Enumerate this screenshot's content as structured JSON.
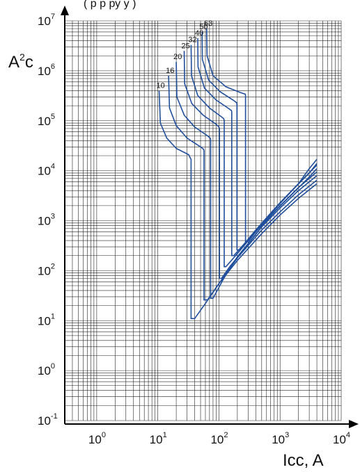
{
  "header_fragment": "(    р  р  ру  у )",
  "chart_data": {
    "type": "line",
    "xscale": "log",
    "yscale": "log",
    "xlim": [
      0.3,
      10000
    ],
    "ylim": [
      0.1,
      10000000
    ],
    "grid": true,
    "xlabel": "Icc, A",
    "ylabel_base": "A",
    "ylabel_exp": "2",
    "ylabel_suffix": "c",
    "x_ticks": [
      {
        "base": "10",
        "exp": "0",
        "value": 1
      },
      {
        "base": "10",
        "exp": "1",
        "value": 10
      },
      {
        "base": "10",
        "exp": "2",
        "value": 100
      },
      {
        "base": "10",
        "exp": "3",
        "value": 1000
      },
      {
        "base": "10",
        "exp": "4",
        "value": 10000
      }
    ],
    "y_ticks": [
      {
        "base": "10",
        "exp": "-1",
        "value": 0.1
      },
      {
        "base": "10",
        "exp": "0",
        "value": 1
      },
      {
        "base": "10",
        "exp": "1",
        "value": 10
      },
      {
        "base": "10",
        "exp": "2",
        "value": 100
      },
      {
        "base": "10",
        "exp": "3",
        "value": 1000
      },
      {
        "base": "10",
        "exp": "4",
        "value": 10000
      },
      {
        "base": "10",
        "exp": "5",
        "value": 100000
      },
      {
        "base": "10",
        "exp": "6",
        "value": 1000000
      },
      {
        "base": "10",
        "exp": "7",
        "value": 10000000
      }
    ],
    "series": [
      {
        "name": "10",
        "points": [
          [
            10.5,
            400000
          ],
          [
            11,
            90000
          ],
          [
            14,
            45000
          ],
          [
            20,
            28000
          ],
          [
            32,
            21000
          ],
          [
            34,
            18000
          ],
          [
            35,
            17000
          ],
          [
            35,
            11
          ],
          [
            40,
            11
          ],
          [
            60,
            22
          ],
          [
            100,
            55
          ],
          [
            200,
            160
          ],
          [
            500,
            550
          ],
          [
            1000,
            1300
          ],
          [
            2000,
            2800
          ],
          [
            4000,
            5500
          ]
        ]
      },
      {
        "name": "16",
        "points": [
          [
            15,
            800000
          ],
          [
            15.5,
            180000
          ],
          [
            20,
            80000
          ],
          [
            30,
            45000
          ],
          [
            50,
            30000
          ],
          [
            56,
            27000
          ],
          [
            57,
            25000
          ],
          [
            57,
            26
          ],
          [
            65,
            26
          ],
          [
            100,
            55
          ],
          [
            200,
            180
          ],
          [
            500,
            650
          ],
          [
            1000,
            1500
          ],
          [
            2000,
            3300
          ],
          [
            4000,
            6500
          ]
        ]
      },
      {
        "name": "20",
        "points": [
          [
            20,
            1500000
          ],
          [
            20.5,
            300000
          ],
          [
            27,
            130000
          ],
          [
            40,
            75000
          ],
          [
            65,
            50000
          ],
          [
            72,
            45000
          ],
          [
            73,
            42000
          ],
          [
            73,
            28
          ],
          [
            80,
            28
          ],
          [
            120,
            70
          ],
          [
            200,
            190
          ],
          [
            500,
            750
          ],
          [
            1000,
            1800
          ],
          [
            2000,
            4000
          ],
          [
            4000,
            8000
          ]
        ]
      },
      {
        "name": "25",
        "points": [
          [
            27,
            2500000
          ],
          [
            27.5,
            550000
          ],
          [
            36,
            220000
          ],
          [
            55,
            130000
          ],
          [
            90,
            85000
          ],
          [
            100,
            75000
          ],
          [
            102,
            70000
          ],
          [
            102,
            70
          ],
          [
            110,
            70
          ],
          [
            150,
            120
          ],
          [
            300,
            340
          ],
          [
            600,
            1000
          ],
          [
            1000,
            2000
          ],
          [
            2000,
            4600
          ],
          [
            4000,
            9500
          ]
        ]
      },
      {
        "name": "32",
        "points": [
          [
            35,
            3300000
          ],
          [
            35.5,
            800000
          ],
          [
            45,
            320000
          ],
          [
            70,
            180000
          ],
          [
            110,
            120000
          ],
          [
            120,
            110000
          ],
          [
            122,
            100000
          ],
          [
            122,
            120
          ],
          [
            130,
            120
          ],
          [
            200,
            220
          ],
          [
            400,
            600
          ],
          [
            800,
            1500
          ],
          [
            1500,
            3200
          ],
          [
            3000,
            7500
          ],
          [
            4000,
            11000
          ]
        ]
      },
      {
        "name": "40",
        "points": [
          [
            45,
            4500000
          ],
          [
            45.5,
            1200000
          ],
          [
            58,
            450000
          ],
          [
            90,
            260000
          ],
          [
            140,
            180000
          ],
          [
            160,
            160000
          ],
          [
            162,
            150000
          ],
          [
            162,
            200
          ],
          [
            175,
            200
          ],
          [
            300,
            420
          ],
          [
            600,
            1100
          ],
          [
            1000,
            2300
          ],
          [
            2000,
            5500
          ],
          [
            4000,
            13000
          ]
        ]
      },
      {
        "name": "50",
        "points": [
          [
            53,
            6000000
          ],
          [
            53.5,
            1700000
          ],
          [
            68,
            650000
          ],
          [
            105,
            380000
          ],
          [
            170,
            260000
          ],
          [
            195,
            230000
          ],
          [
            197,
            210000
          ],
          [
            197,
            260
          ],
          [
            215,
            260
          ],
          [
            400,
            650
          ],
          [
            800,
            1700
          ],
          [
            1500,
            3800
          ],
          [
            3000,
            9000
          ],
          [
            4000,
            14000
          ]
        ]
      },
      {
        "name": "63",
        "points": [
          [
            63,
            7000000
          ],
          [
            64,
            2000000
          ],
          [
            80,
            800000
          ],
          [
            130,
            480000
          ],
          [
            220,
            370000
          ],
          [
            270,
            340000
          ],
          [
            272,
            320000
          ],
          [
            272,
            380
          ],
          [
            300,
            380
          ],
          [
            500,
            850
          ],
          [
            1000,
            2200
          ],
          [
            2000,
            5500
          ],
          [
            3000,
            11000
          ],
          [
            4000,
            17000
          ]
        ]
      }
    ]
  }
}
